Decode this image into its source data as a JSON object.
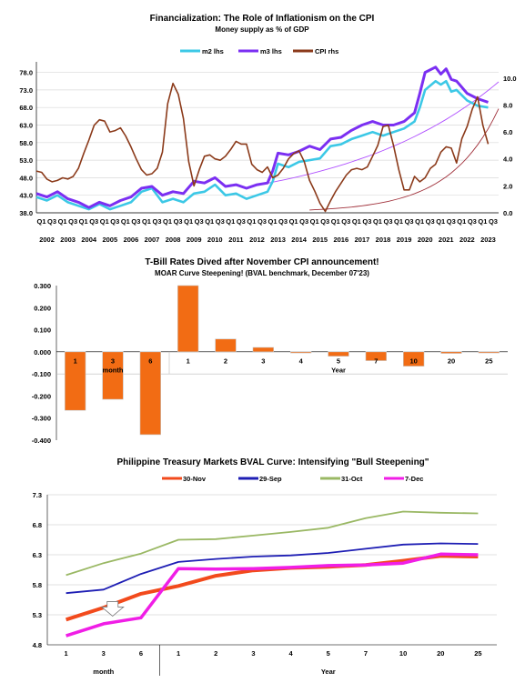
{
  "chart_data": [
    {
      "type": "line",
      "title": "Financialization: The Role of Inflationism on the CPI",
      "subtitle": "Money supply as % of GDP",
      "left_yticks": [
        "38.0",
        "43.0",
        "48.0",
        "53.0",
        "58.0",
        "63.0",
        "68.0",
        "73.0",
        "78.0"
      ],
      "right_yticks": [
        "0.0",
        "2.0",
        "4.0",
        "6.0",
        "8.0",
        "10.0"
      ],
      "ylim_left": [
        38,
        81
      ],
      "ylim_right": [
        0,
        11.2
      ],
      "quarter_labels": [
        "Q1",
        "Q3"
      ],
      "years": [
        "2002",
        "2003",
        "2004",
        "2005",
        "2006",
        "2007",
        "2008",
        "2009",
        "2010",
        "2011",
        "2012",
        "2013",
        "2014",
        "2015",
        "2016",
        "2017",
        "2018",
        "2019",
        "2020",
        "2021",
        "2022",
        "2023"
      ],
      "legend_position": "top",
      "series": [
        {
          "name": "m2 lhs",
          "color": "#3cc8e6",
          "axis": "left",
          "x": [
            2002,
            2002.5,
            2003,
            2003.5,
            2004,
            2004.5,
            2005,
            2005.5,
            2006,
            2006.5,
            2007,
            2007.5,
            2008,
            2008.5,
            2009,
            2009.5,
            2010,
            2010.5,
            2011,
            2011.5,
            2012,
            2012.5,
            2013,
            2013.25,
            2013.5,
            2014,
            2014.5,
            2015,
            2015.5,
            2016,
            2016.5,
            2017,
            2017.5,
            2018,
            2018.5,
            2019,
            2019.5,
            2020,
            2020.25,
            2020.5,
            2021,
            2021.25,
            2021.5,
            2021.75,
            2022,
            2022.5,
            2023,
            2023.5
          ],
          "y": [
            42.5,
            41.5,
            43,
            41,
            40,
            39,
            40.5,
            39,
            40,
            41,
            44,
            45,
            41,
            42,
            41,
            43.5,
            44,
            46,
            43,
            43.5,
            42,
            43,
            44,
            47,
            52,
            51,
            52.5,
            53,
            53.5,
            57,
            57.5,
            59,
            60,
            61,
            60,
            61,
            62,
            64,
            68,
            73,
            75.5,
            74.5,
            75.5,
            72.5,
            73,
            70,
            68.5,
            68
          ]
        },
        {
          "name": "m3 lhs",
          "color": "#7b2ff2",
          "axis": "left",
          "x": [
            2002,
            2002.5,
            2003,
            2003.5,
            2004,
            2004.5,
            2005,
            2005.5,
            2006,
            2006.5,
            2007,
            2007.5,
            2008,
            2008.5,
            2009,
            2009.5,
            2010,
            2010.5,
            2011,
            2011.5,
            2012,
            2012.5,
            2013,
            2013.25,
            2013.5,
            2014,
            2014.5,
            2015,
            2015.5,
            2016,
            2016.5,
            2017,
            2017.5,
            2018,
            2018.5,
            2019,
            2019.5,
            2020,
            2020.25,
            2020.5,
            2021,
            2021.25,
            2021.5,
            2021.75,
            2022,
            2022.5,
            2023,
            2023.5
          ],
          "y": [
            43.5,
            42.5,
            44,
            42,
            41,
            39.5,
            41,
            40,
            41.5,
            42.5,
            45,
            45.5,
            43,
            44,
            43.5,
            47,
            46.5,
            48,
            45.5,
            46,
            45,
            46,
            46.5,
            50,
            55,
            54.5,
            55.5,
            57,
            56,
            59,
            59.5,
            61.5,
            63,
            64,
            63,
            63,
            64,
            66.5,
            72,
            78,
            79.5,
            77.5,
            79,
            76,
            75.5,
            72,
            70.5,
            69.5
          ]
        },
        {
          "name": "CPI rhs",
          "color": "#8b3a1a",
          "axis": "right",
          "x": [
            2002,
            2002.25,
            2002.5,
            2002.75,
            2003,
            2003.25,
            2003.5,
            2003.75,
            2004,
            2004.25,
            2004.5,
            2004.75,
            2005,
            2005.25,
            2005.5,
            2005.75,
            2006,
            2006.25,
            2006.5,
            2006.75,
            2007,
            2007.25,
            2007.5,
            2007.75,
            2008,
            2008.25,
            2008.5,
            2008.75,
            2009,
            2009.25,
            2009.5,
            2009.75,
            2010,
            2010.25,
            2010.5,
            2010.75,
            2011,
            2011.25,
            2011.5,
            2011.75,
            2012,
            2012.25,
            2012.5,
            2012.75,
            2013,
            2013.25,
            2013.5,
            2013.75,
            2014,
            2014.25,
            2014.5,
            2014.75,
            2015,
            2015.25,
            2015.5,
            2015.75,
            2016,
            2016.25,
            2016.5,
            2016.75,
            2017,
            2017.25,
            2017.5,
            2017.75,
            2018,
            2018.25,
            2018.5,
            2018.75,
            2019,
            2019.25,
            2019.5,
            2019.75,
            2020,
            2020.25,
            2020.5,
            2020.75,
            2021,
            2021.25,
            2021.5,
            2021.75,
            2022,
            2022.25,
            2022.5,
            2022.75,
            2023,
            2023.25,
            2023.5
          ],
          "y": [
            3.1,
            3.0,
            2.5,
            2.3,
            2.4,
            2.6,
            2.5,
            2.7,
            3.3,
            4.4,
            5.4,
            6.5,
            6.9,
            6.8,
            6.0,
            6.1,
            6.3,
            5.7,
            4.9,
            4.0,
            3.2,
            2.8,
            2.9,
            3.3,
            4.5,
            8.1,
            9.6,
            8.8,
            7.0,
            3.8,
            2.0,
            3.2,
            4.2,
            4.3,
            4.0,
            3.9,
            4.2,
            4.7,
            5.3,
            5.1,
            5.1,
            3.6,
            3.2,
            3.0,
            3.4,
            2.6,
            2.8,
            3.3,
            4.0,
            4.4,
            4.6,
            3.8,
            2.4,
            1.6,
            0.7,
            0.1,
            0.9,
            1.6,
            2.2,
            2.8,
            3.2,
            3.3,
            3.2,
            3.4,
            4.2,
            5.0,
            6.4,
            6.5,
            5.0,
            3.2,
            1.7,
            1.7,
            2.7,
            2.3,
            2.6,
            3.3,
            3.6,
            4.5,
            4.9,
            4.8,
            3.7,
            5.5,
            6.4,
            7.7,
            8.6,
            6.5,
            5.1
          ]
        }
      ]
    },
    {
      "type": "bar",
      "title": "T-Bill Rates Dived after November CPI announcement!",
      "subtitle": "MOAR Curve Steepening!  (BVAL benchmark,  December  07'23)",
      "categories": [
        "1",
        "3",
        "6",
        "1",
        "2",
        "3",
        "4",
        "5",
        "7",
        "10",
        "20",
        "25"
      ],
      "values": [
        -0.265,
        -0.215,
        -0.375,
        0.3,
        0.058,
        0.02,
        -0.005,
        -0.02,
        -0.04,
        -0.065,
        -0.007,
        -0.003
      ],
      "group_labels": [
        "month",
        "Year"
      ],
      "yticks": [
        "0.300",
        "0.200",
        "0.100",
        "0.000",
        "-0.100",
        "-0.200",
        "-0.300",
        "-0.400"
      ],
      "ylim": [
        -0.4,
        0.3
      ],
      "bar_color": "#f26c14"
    },
    {
      "type": "line",
      "title": "Philippine Treasury Markets BVAL Curve: Intensifying \"Bull Steepening\"",
      "categories": [
        "1",
        "3",
        "6",
        "1",
        "2",
        "3",
        "4",
        "5",
        "7",
        "10",
        "20",
        "25"
      ],
      "group_labels": [
        "month",
        "Year"
      ],
      "yticks": [
        "7.3",
        "6.8",
        "6.3",
        "5.8",
        "5.3",
        "4.8"
      ],
      "ylim": [
        4.8,
        7.3
      ],
      "legend_position": "top",
      "series": [
        {
          "name": "30-Nov",
          "color": "#f24a1c",
          "width": 4,
          "values": [
            5.22,
            5.42,
            5.65,
            5.78,
            5.95,
            6.04,
            6.08,
            6.1,
            6.13,
            6.2,
            6.28,
            6.27
          ]
        },
        {
          "name": "29-Sep",
          "color": "#1e1eb4",
          "width": 1.8,
          "values": [
            5.66,
            5.72,
            5.98,
            6.18,
            6.23,
            6.27,
            6.29,
            6.33,
            6.4,
            6.47,
            6.49,
            6.48
          ]
        },
        {
          "name": "31-Oct",
          "color": "#9ab864",
          "width": 1.8,
          "values": [
            5.96,
            6.16,
            6.32,
            6.55,
            6.56,
            6.62,
            6.68,
            6.75,
            6.91,
            7.02,
            7.0,
            6.99
          ]
        },
        {
          "name": "7-Dec",
          "color": "#f01ee6",
          "width": 3.5,
          "values": [
            4.95,
            5.15,
            5.25,
            6.07,
            6.06,
            6.07,
            6.09,
            6.12,
            6.13,
            6.16,
            6.31,
            6.3
          ]
        }
      ]
    }
  ]
}
